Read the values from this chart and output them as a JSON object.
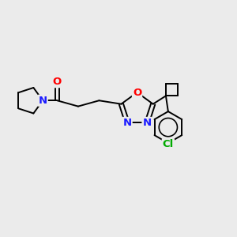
{
  "background_color": "#ebebeb",
  "atom_colors": {
    "C": "#000000",
    "N": "#1a1aff",
    "O": "#ff0000",
    "Cl": "#00aa00"
  },
  "figsize": [
    3.0,
    3.0
  ],
  "dpi": 100,
  "lw": 1.4,
  "fs": 9.5
}
